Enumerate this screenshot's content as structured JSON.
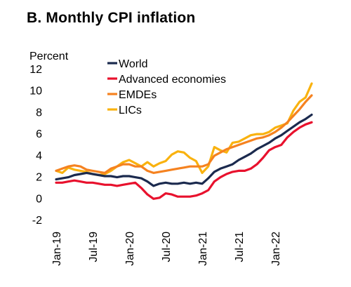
{
  "title": "B. Monthly CPI inflation",
  "chart_data": {
    "type": "line",
    "title": "B. Monthly CPI inflation",
    "ylabel": "Percent",
    "xlabel": "",
    "ylim": [
      -2,
      12
    ],
    "yticks": [
      -2,
      0,
      2,
      4,
      6,
      8,
      10,
      12
    ],
    "x": [
      "Jan-19",
      "Feb-19",
      "Mar-19",
      "Apr-19",
      "May-19",
      "Jun-19",
      "Jul-19",
      "Aug-19",
      "Sep-19",
      "Oct-19",
      "Nov-19",
      "Dec-19",
      "Jan-20",
      "Feb-20",
      "Mar-20",
      "Apr-20",
      "May-20",
      "Jun-20",
      "Jul-20",
      "Aug-20",
      "Sep-20",
      "Oct-20",
      "Nov-20",
      "Dec-20",
      "Jan-21",
      "Feb-21",
      "Mar-21",
      "Apr-21",
      "May-21",
      "Jun-21",
      "Jul-21",
      "Aug-21",
      "Sep-21",
      "Oct-21",
      "Nov-21",
      "Dec-21",
      "Jan-22",
      "Feb-22",
      "Mar-22",
      "Apr-22",
      "May-22",
      "Jun-22",
      "Jul-22"
    ],
    "xtick_labels": [
      "Jan-19",
      "Jul-19",
      "Jan-20",
      "Jul-20",
      "Jan-21",
      "Jul-21",
      "Jan-22"
    ],
    "grid": false,
    "legend_position": "top-left",
    "series": [
      {
        "name": "World",
        "color": "#1b2a4e",
        "values": [
          1.8,
          1.9,
          2.0,
          2.2,
          2.3,
          2.4,
          2.3,
          2.2,
          2.1,
          2.1,
          2.0,
          2.1,
          2.1,
          2.0,
          1.9,
          1.6,
          1.2,
          1.4,
          1.5,
          1.4,
          1.4,
          1.5,
          1.4,
          1.5,
          1.4,
          1.9,
          2.5,
          2.8,
          3.0,
          3.2,
          3.6,
          3.9,
          4.2,
          4.6,
          4.9,
          5.2,
          5.6,
          5.9,
          6.3,
          6.7,
          7.1,
          7.4,
          7.8
        ]
      },
      {
        "name": "Advanced economies",
        "color": "#e8112d",
        "values": [
          1.5,
          1.5,
          1.6,
          1.7,
          1.6,
          1.5,
          1.5,
          1.4,
          1.3,
          1.3,
          1.2,
          1.3,
          1.4,
          1.5,
          1.0,
          0.4,
          0.0,
          0.1,
          0.5,
          0.4,
          0.2,
          0.2,
          0.2,
          0.3,
          0.5,
          0.8,
          1.6,
          2.0,
          2.3,
          2.5,
          2.6,
          2.6,
          2.8,
          3.2,
          3.8,
          4.5,
          4.8,
          5.0,
          5.7,
          6.2,
          6.6,
          6.9,
          7.1
        ]
      },
      {
        "name": "EMDEs",
        "color": "#f58220",
        "values": [
          2.6,
          2.8,
          3.0,
          3.1,
          3.0,
          2.7,
          2.6,
          2.5,
          2.4,
          2.8,
          3.0,
          3.2,
          3.2,
          3.0,
          3.0,
          2.6,
          2.4,
          2.5,
          2.6,
          2.7,
          2.8,
          2.9,
          3.0,
          3.0,
          3.0,
          3.2,
          4.0,
          4.3,
          4.6,
          4.8,
          5.0,
          5.2,
          5.4,
          5.6,
          5.7,
          5.9,
          6.2,
          6.6,
          7.1,
          7.7,
          8.3,
          9.0,
          9.6
        ]
      },
      {
        "name": "LICs",
        "color": "#f9b20f",
        "values": [
          2.6,
          2.4,
          2.9,
          2.7,
          2.6,
          2.5,
          2.3,
          2.2,
          2.3,
          2.6,
          3.0,
          3.4,
          3.6,
          3.3,
          3.0,
          3.4,
          3.0,
          3.3,
          3.5,
          4.1,
          4.4,
          4.3,
          3.8,
          3.5,
          2.4,
          3.0,
          4.8,
          4.5,
          4.3,
          5.2,
          5.3,
          5.6,
          5.9,
          6.0,
          6.0,
          6.2,
          6.6,
          6.8,
          7.0,
          8.2,
          9.0,
          9.4,
          10.7
        ]
      }
    ]
  }
}
